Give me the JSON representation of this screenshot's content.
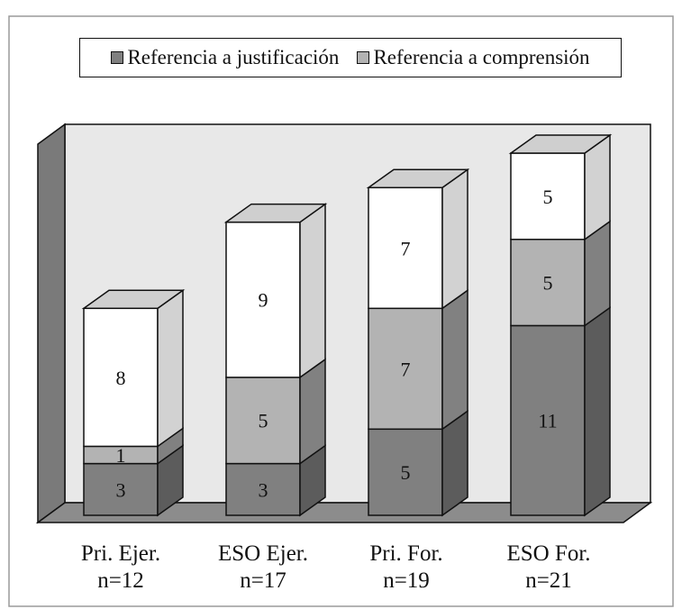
{
  "chart_data": {
    "type": "bar",
    "stacked": true,
    "style": "3d",
    "categories": [
      "Pri. Ejer.",
      "ESO Ejer.",
      "Pri. For.",
      "ESO For."
    ],
    "category_n": [
      "n=12",
      "n=17",
      "n=19",
      "n=21"
    ],
    "series": [
      {
        "name": "Referencia a justificación",
        "values": [
          3,
          3,
          5,
          11
        ],
        "color": "#808080"
      },
      {
        "name": "Referencia a comprensión",
        "values": [
          1,
          5,
          7,
          5
        ],
        "color": "#b3b3b3"
      },
      {
        "name": "",
        "values": [
          8,
          9,
          7,
          5
        ],
        "color": "#ffffff"
      }
    ],
    "legend_position": "top",
    "grid": false
  }
}
